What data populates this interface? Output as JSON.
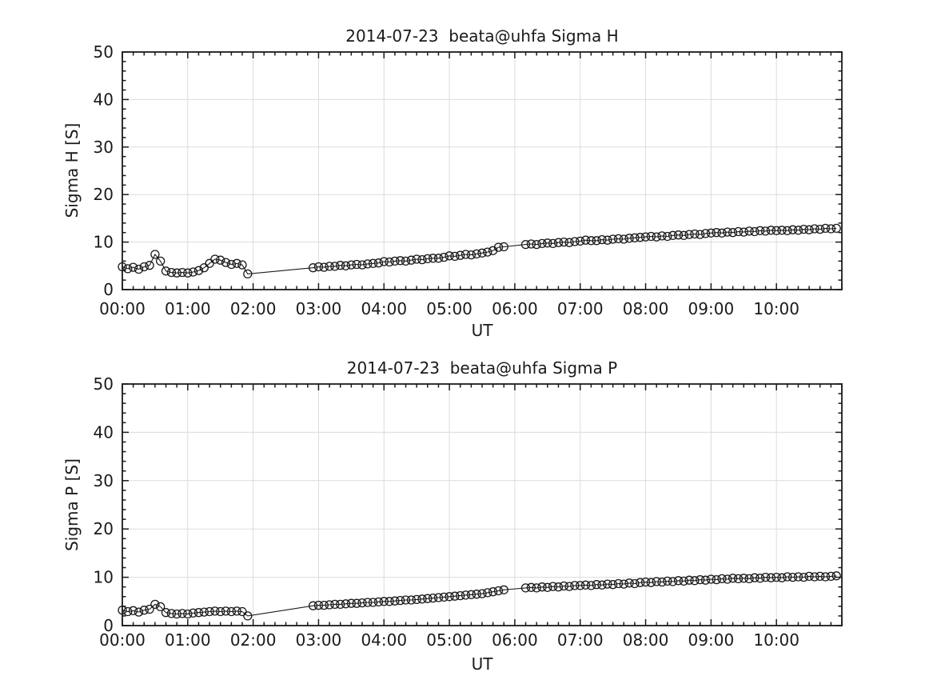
{
  "figure": {
    "background": "#ffffff",
    "axis_color": "#1a1a1a",
    "grid_color": "#dcdcdc",
    "marker": {
      "shape": "open-circle",
      "radius": 5,
      "stroke": "#1a1a1a"
    },
    "x_axis_label": "UT",
    "x_tick_labels": [
      "00:00",
      "01:00",
      "02:00",
      "03:00",
      "04:00",
      "05:00",
      "06:00",
      "07:00",
      "08:00",
      "09:00",
      "10:00"
    ],
    "x_tick_hours": [
      0,
      1,
      2,
      3,
      4,
      5,
      6,
      7,
      8,
      9,
      10
    ],
    "xlim_hours": [
      0,
      11
    ],
    "ylim": [
      0,
      50
    ],
    "y_ticks": [
      0,
      10,
      20,
      30,
      40,
      50
    ],
    "x_minor_step_minutes": 10,
    "y_minor_step": 2
  },
  "chart_data": [
    {
      "type": "line",
      "title": "2014-07-23  beata@uhfa Sigma H",
      "xlabel": "UT",
      "ylabel": "Sigma H [S]",
      "x_unit": "hours UT",
      "sample_step_minutes": 5,
      "xlim": [
        0,
        11
      ],
      "ylim": [
        0,
        50
      ],
      "grid": true,
      "runs": [
        {
          "start_hour": 0,
          "values": [
            4.8,
            4.4,
            4.7,
            4.3,
            4.8,
            5.1,
            7.4,
            6.0,
            3.9,
            3.6,
            3.5,
            3.6,
            3.5,
            3.7,
            4.0,
            4.6,
            5.5,
            6.4,
            6.2,
            5.7,
            5.3,
            5.5,
            5.2,
            3.3
          ]
        },
        {
          "start_hour": 2.9167,
          "values": [
            4.6,
            4.8,
            4.7,
            4.9,
            4.9,
            5.1,
            5.0,
            5.2,
            5.3,
            5.2,
            5.4,
            5.5,
            5.6,
            5.9,
            5.8,
            6.0,
            6.1,
            6.0,
            6.2,
            6.4,
            6.3,
            6.5,
            6.6,
            6.6,
            6.8,
            7.1,
            7.0,
            7.2,
            7.4,
            7.3,
            7.5,
            7.7,
            7.9,
            8.2,
            8.9,
            9.0
          ]
        },
        {
          "start_hour": 6.1667,
          "values": [
            9.5,
            9.6,
            9.5,
            9.7,
            9.8,
            9.7,
            9.9,
            10.0,
            9.9,
            10.1,
            10.2,
            10.4,
            10.3,
            10.3,
            10.5,
            10.4,
            10.6,
            10.7,
            10.6,
            10.8,
            10.9,
            11.0,
            11.1,
            11.2,
            11.1,
            11.3,
            11.2,
            11.4,
            11.5,
            11.4,
            11.6,
            11.7,
            11.6,
            11.8,
            11.9,
            12.0,
            11.9,
            12.1,
            12.0,
            12.2,
            12.1,
            12.3,
            12.2,
            12.4,
            12.3,
            12.5,
            12.4,
            12.5,
            12.4,
            12.6,
            12.5,
            12.7,
            12.6,
            12.8,
            12.7,
            12.9,
            12.8,
            12.9
          ]
        }
      ]
    },
    {
      "type": "line",
      "title": "2014-07-23  beata@uhfa Sigma P",
      "xlabel": "UT",
      "ylabel": "Sigma P [S]",
      "x_unit": "hours UT",
      "sample_step_minutes": 5,
      "xlim": [
        0,
        11
      ],
      "ylim": [
        0,
        50
      ],
      "grid": true,
      "runs": [
        {
          "start_hour": 0,
          "values": [
            3.2,
            2.9,
            3.1,
            2.8,
            3.2,
            3.4,
            4.4,
            3.9,
            2.7,
            2.5,
            2.4,
            2.5,
            2.4,
            2.6,
            2.7,
            2.8,
            2.9,
            3.0,
            2.9,
            3.0,
            2.9,
            3.0,
            2.9,
            2.0
          ]
        },
        {
          "start_hour": 2.9167,
          "values": [
            4.1,
            4.2,
            4.2,
            4.3,
            4.4,
            4.4,
            4.5,
            4.6,
            4.6,
            4.7,
            4.8,
            4.8,
            4.9,
            5.0,
            5.0,
            5.1,
            5.2,
            5.3,
            5.3,
            5.4,
            5.5,
            5.6,
            5.7,
            5.8,
            5.9,
            6.0,
            6.1,
            6.2,
            6.3,
            6.4,
            6.5,
            6.6,
            6.8,
            7.0,
            7.2,
            7.4
          ]
        },
        {
          "start_hour": 6.1667,
          "values": [
            7.8,
            7.9,
            7.8,
            8.0,
            7.9,
            8.1,
            8.0,
            8.2,
            8.1,
            8.3,
            8.3,
            8.4,
            8.3,
            8.5,
            8.4,
            8.6,
            8.5,
            8.7,
            8.6,
            8.8,
            8.7,
            8.9,
            9.0,
            8.9,
            9.1,
            9.0,
            9.2,
            9.1,
            9.3,
            9.2,
            9.4,
            9.3,
            9.5,
            9.4,
            9.6,
            9.5,
            9.7,
            9.6,
            9.8,
            9.7,
            9.8,
            9.7,
            9.9,
            9.8,
            10.0,
            9.9,
            10.0,
            9.9,
            10.1,
            10.0,
            10.1,
            10.0,
            10.2,
            10.1,
            10.2,
            10.1,
            10.2,
            10.3
          ]
        }
      ]
    }
  ]
}
